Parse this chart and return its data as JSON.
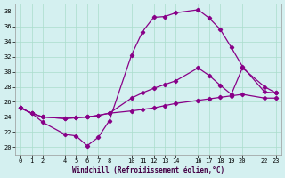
{
  "xlabel": "Windchill (Refroidissement éolien,°C)",
  "bg_color": "#d4f0f0",
  "line_color": "#880088",
  "xlim": [
    -0.5,
    23.5
  ],
  "ylim": [
    19.0,
    39.0
  ],
  "xticks": [
    0,
    1,
    2,
    4,
    5,
    6,
    7,
    8,
    10,
    11,
    12,
    13,
    14,
    16,
    17,
    18,
    19,
    20,
    22,
    23
  ],
  "yticks": [
    20,
    22,
    24,
    26,
    28,
    30,
    32,
    34,
    36,
    38
  ],
  "curve1_x": [
    0,
    1,
    2,
    4,
    5,
    6,
    7,
    8,
    10,
    11,
    12,
    13,
    14,
    16,
    17,
    18,
    19,
    20,
    22,
    23
  ],
  "curve1_y": [
    25.2,
    24.5,
    23.3,
    21.7,
    21.5,
    20.2,
    21.3,
    23.5,
    32.2,
    35.3,
    37.2,
    37.3,
    37.8,
    38.2,
    37.1,
    35.6,
    33.2,
    30.7,
    27.3,
    27.2
  ],
  "curve2_x": [
    0,
    1,
    2,
    4,
    5,
    6,
    7,
    8,
    10,
    11,
    12,
    13,
    14,
    16,
    17,
    18,
    19,
    20,
    22,
    23
  ],
  "curve2_y": [
    25.2,
    24.5,
    24.0,
    23.8,
    23.9,
    24.0,
    24.2,
    24.5,
    26.5,
    27.2,
    27.8,
    28.3,
    28.8,
    30.5,
    29.5,
    28.2,
    27.0,
    30.5,
    28.0,
    27.2
  ],
  "curve3_x": [
    0,
    1,
    2,
    4,
    5,
    6,
    7,
    8,
    10,
    11,
    12,
    13,
    14,
    16,
    17,
    18,
    19,
    20,
    22,
    23
  ],
  "curve3_y": [
    25.2,
    24.5,
    24.0,
    23.8,
    23.9,
    24.0,
    24.2,
    24.5,
    24.8,
    25.0,
    25.2,
    25.5,
    25.8,
    26.2,
    26.4,
    26.6,
    26.8,
    27.0,
    26.5,
    26.5
  ]
}
